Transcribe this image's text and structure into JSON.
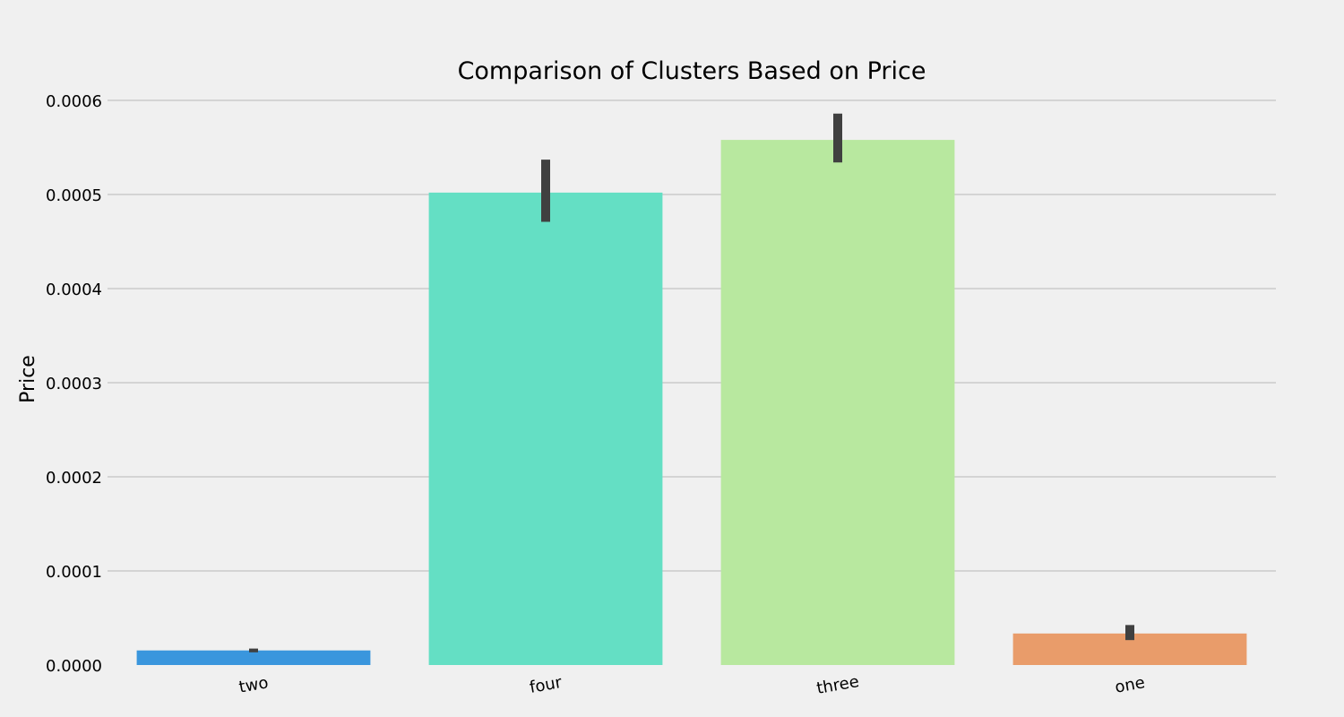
{
  "chart_data": {
    "type": "bar",
    "title": "Comparison of Clusters Based on Price",
    "xlabel": "",
    "ylabel": "Price",
    "categories": [
      "two",
      "four",
      "three",
      "one"
    ],
    "values": [
      1.55e-05,
      0.000502,
      0.000558,
      3.35e-05
    ],
    "error_bars": [
      [
        1.35e-05,
        1.75e-05
      ],
      [
        0.000471,
        0.000537
      ],
      [
        0.000534,
        0.000586
      ],
      [
        2.65e-05,
        4.25e-05
      ]
    ],
    "colors": [
      "#3a96dd",
      "#64dfc4",
      "#b8e89f",
      "#e99c6a"
    ],
    "error_bar_color": "#404040",
    "ylim": [
      0,
      0.0006
    ],
    "yticks": [
      0,
      0.0001,
      0.0002,
      0.0003,
      0.0004,
      0.0005,
      0.0006
    ],
    "ytick_labels": [
      "0.0000",
      "0.0001",
      "0.0002",
      "0.0003",
      "0.0004",
      "0.0005",
      "0.0006"
    ],
    "grid": "horizontal",
    "background": "#f0f0f0",
    "legend": "none"
  }
}
